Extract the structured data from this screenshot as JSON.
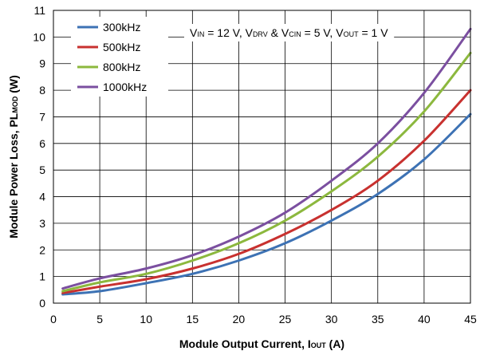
{
  "chart_data": {
    "type": "line",
    "xlabel": {
      "main": "Module Output Current, I",
      "sub": "OUT",
      "unit": " (A)"
    },
    "ylabel": {
      "main": "Module Power Loss, PL",
      "sub": "MOD",
      "unit": " (W)"
    },
    "annotation": [
      {
        "t": "V",
        "s": false
      },
      {
        "t": "IN",
        "s": true
      },
      {
        "t": " = 12 V, V",
        "s": false
      },
      {
        "t": "DRV",
        "s": true
      },
      {
        "t": " & V",
        "s": false
      },
      {
        "t": "CIN",
        "s": true
      },
      {
        "t": " = 5 V, V",
        "s": false
      },
      {
        "t": "OUT",
        "s": true
      },
      {
        "t": " = 1 V",
        "s": false
      }
    ],
    "xlim": [
      0,
      45
    ],
    "ylim": [
      0,
      11
    ],
    "xticks": [
      0,
      5,
      10,
      15,
      20,
      25,
      30,
      35,
      40,
      45
    ],
    "yticks": [
      0,
      1,
      2,
      3,
      4,
      5,
      6,
      7,
      8,
      9,
      10,
      11
    ],
    "grid": true,
    "legend_position": "top-left",
    "x": [
      1,
      5,
      10,
      15,
      20,
      25,
      30,
      35,
      40,
      45
    ],
    "series": [
      {
        "name": "300kHz",
        "color": "#3d72b4",
        "values": [
          0.33,
          0.45,
          0.75,
          1.1,
          1.6,
          2.25,
          3.1,
          4.1,
          5.4,
          7.1
        ]
      },
      {
        "name": "500kHz",
        "color": "#c8312f",
        "values": [
          0.38,
          0.62,
          0.9,
          1.3,
          1.85,
          2.6,
          3.5,
          4.6,
          6.1,
          8.0
        ]
      },
      {
        "name": "800kHz",
        "color": "#8cb83e",
        "values": [
          0.45,
          0.78,
          1.1,
          1.6,
          2.25,
          3.1,
          4.2,
          5.5,
          7.2,
          9.4
        ]
      },
      {
        "name": "1000kHz",
        "color": "#7b4fa0",
        "values": [
          0.55,
          0.93,
          1.3,
          1.8,
          2.5,
          3.4,
          4.6,
          6.0,
          7.9,
          10.3
        ]
      }
    ]
  }
}
